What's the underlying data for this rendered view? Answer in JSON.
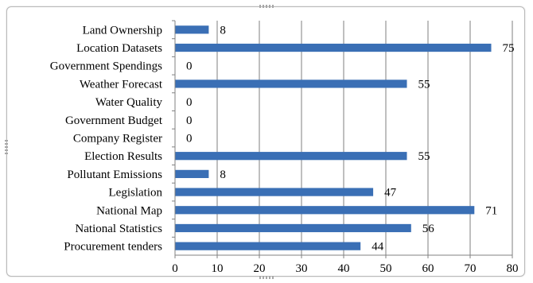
{
  "chart_data": {
    "type": "bar",
    "orientation": "horizontal",
    "title": "",
    "xlabel": "",
    "ylabel": "",
    "categories": [
      "Land Ownership",
      "Location Datasets",
      "Government Spendings",
      "Weather Forecast",
      "Water Quality",
      "Government Budget",
      "Company Register",
      "Election Results",
      "Pollutant Emissions",
      "Legislation",
      "National Map",
      "National Statistics",
      "Procurement tenders"
    ],
    "values": [
      8,
      75,
      0,
      55,
      0,
      0,
      0,
      55,
      8,
      47,
      71,
      56,
      44
    ],
    "data_labels": [
      "8",
      "75",
      "0",
      "55",
      "0",
      "0",
      "0",
      "55",
      "8",
      "47",
      "71",
      "56",
      "44"
    ],
    "xlim": [
      0,
      80
    ],
    "xticks": [
      "0",
      "10",
      "20",
      "30",
      "40",
      "50",
      "60",
      "70",
      "80"
    ],
    "grid": "vertical",
    "legend": "none",
    "bar_color": "#3a6fb5",
    "grid_color": "#7f7f7f"
  }
}
